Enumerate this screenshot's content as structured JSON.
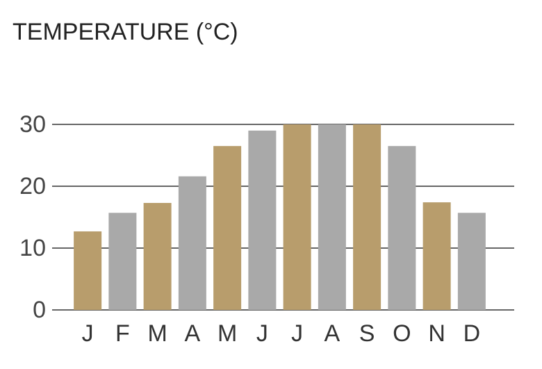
{
  "chart_data": {
    "type": "bar",
    "title": "TEMPERATURE (°C)",
    "categories": [
      "J",
      "F",
      "M",
      "A",
      "M",
      "J",
      "J",
      "A",
      "S",
      "O",
      "N",
      "D"
    ],
    "values": [
      12.7,
      15.7,
      17.3,
      21.6,
      26.5,
      29,
      30,
      30,
      30,
      26.5,
      17.4,
      15.7
    ],
    "colors": [
      "#b89d6c",
      "#a9a9a9",
      "#b89d6c",
      "#a9a9a9",
      "#b89d6c",
      "#a9a9a9",
      "#b89d6c",
      "#a9a9a9",
      "#b89d6c",
      "#a9a9a9",
      "#b89d6c",
      "#a9a9a9"
    ],
    "ylim": [
      0,
      30
    ],
    "yticks": [
      0,
      10,
      20,
      30
    ],
    "grid": true
  }
}
